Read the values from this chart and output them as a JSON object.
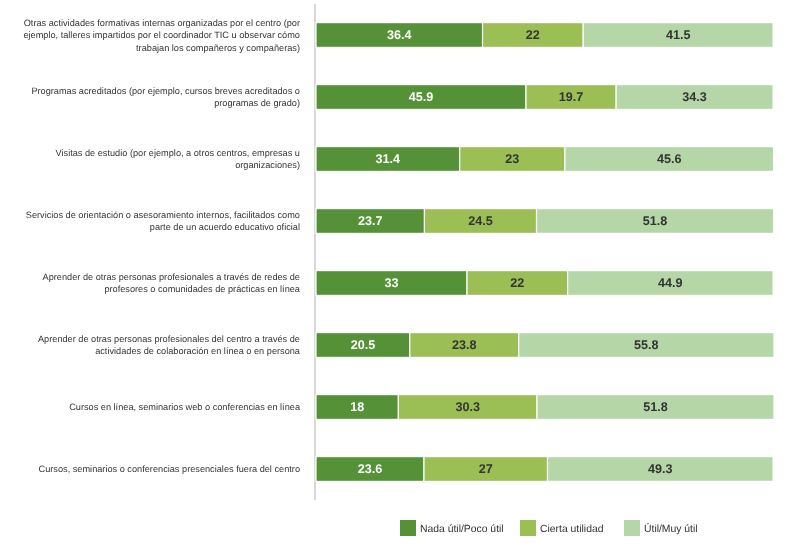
{
  "chart_data": {
    "type": "bar",
    "orientation": "horizontal",
    "stacked": true,
    "data_labels": true,
    "legend": "bottom",
    "grid": false,
    "categories": [
      "Otras actividades formativas internas organizadas por el centro (por ejemplo, talleres impartidos por el coordinador TIC u observar cómo trabajan los compañeros y compañeras)",
      "Programas acreditados (por ejemplo, cursos breves acreditados o programas de grado)",
      "Visitas de estudio (por ejemplo, a otros centros, empresas u organizaciones)",
      "Servicios de orientación o asesoramiento internos, facilitados como parte de un acuerdo educativo oficial",
      "Aprender de otras personas profesionales a través de redes de profesores o comunidades de prácticas en línea",
      "Aprender de otras personas profesionales del centro a través de actividades de colaboración en línea o en persona",
      "Cursos en línea, seminarios web o conferencias en línea",
      "Cursos, seminarios o conferencias presenciales fuera del centro"
    ],
    "series": [
      {
        "name": "Nada útil/Poco útil",
        "color": "#559137",
        "values": [
          36.4,
          45.9,
          31.4,
          23.7,
          33,
          20.5,
          18,
          23.6
        ]
      },
      {
        "name": "Cierta utilidad",
        "color": "#9bbf55",
        "values": [
          22,
          19.7,
          23,
          24.5,
          22,
          23.8,
          30.3,
          27
        ]
      },
      {
        "name": "Útil/Muy útil",
        "color": "#b5d6a7",
        "values": [
          41.5,
          34.3,
          45.6,
          51.8,
          44.9,
          55.8,
          51.8,
          49.3
        ]
      }
    ]
  }
}
